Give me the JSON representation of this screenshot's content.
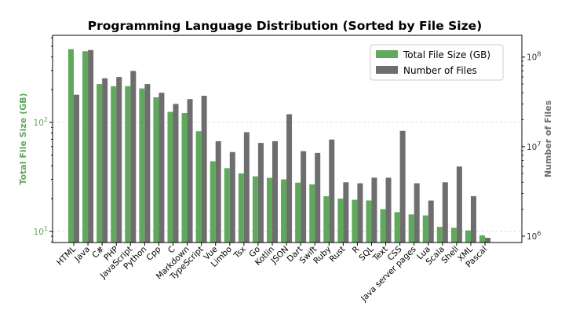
{
  "chart_data": {
    "type": "bar",
    "title": "Programming Language Distribution (Sorted by File Size)",
    "ylabel_left": "Total File Size (GB)",
    "ylabel_right": "Number of Files",
    "yscale": "log",
    "ylim_left": [
      7.9,
      630
    ],
    "ylim_right": [
      850000,
      175000000
    ],
    "left_ticks": [
      {
        "value": 10,
        "label": "10^1"
      },
      {
        "value": 100,
        "label": "10^2"
      }
    ],
    "right_ticks": [
      {
        "value": 1000000,
        "label": "10^6"
      },
      {
        "value": 10000000,
        "label": "10^7"
      },
      {
        "value": 100000000,
        "label": "10^8"
      }
    ],
    "legend_position": "top-right",
    "colors": {
      "size": "#5fa95c",
      "files": "#6e6e6e",
      "grid": "#dddddd"
    },
    "categories": [
      "HTML",
      "Java",
      "C#",
      "PHP",
      "JavaScript",
      "Python",
      "Cpp",
      "C",
      "Markdown",
      "TypeScript",
      "Vue",
      "Limbo",
      "Tsx",
      "Go",
      "Kotlin",
      "JSON",
      "Dart",
      "Swift",
      "Ruby",
      "Rust",
      "R",
      "SQL",
      "Text",
      "CSS",
      "Java server pages",
      "Lua",
      "Scala",
      "Shell",
      "XML",
      "Pascal"
    ],
    "series": [
      {
        "name": "Total File Size (GB)",
        "axis": "left",
        "values": [
          470,
          450,
          225,
          215,
          215,
          205,
          170,
          125,
          122,
          83,
          44,
          38,
          34,
          32,
          31,
          30,
          28,
          27,
          21,
          20,
          19.5,
          19.2,
          16,
          15,
          14.3,
          14,
          11,
          10.8,
          10.2,
          9.2
        ]
      },
      {
        "name": "Number of Files",
        "axis": "right",
        "values": [
          38000000,
          120000000,
          58000000,
          60000000,
          70000000,
          50000000,
          40000000,
          30000000,
          34000000,
          37000000,
          11500000,
          8700000,
          14500000,
          11000000,
          11500000,
          23000000,
          8900000,
          8500000,
          12000000,
          4000000,
          3900000,
          4500000,
          4500000,
          15000000,
          3900000,
          2500000,
          4000000,
          6000000,
          2800000,
          960000
        ]
      }
    ]
  }
}
